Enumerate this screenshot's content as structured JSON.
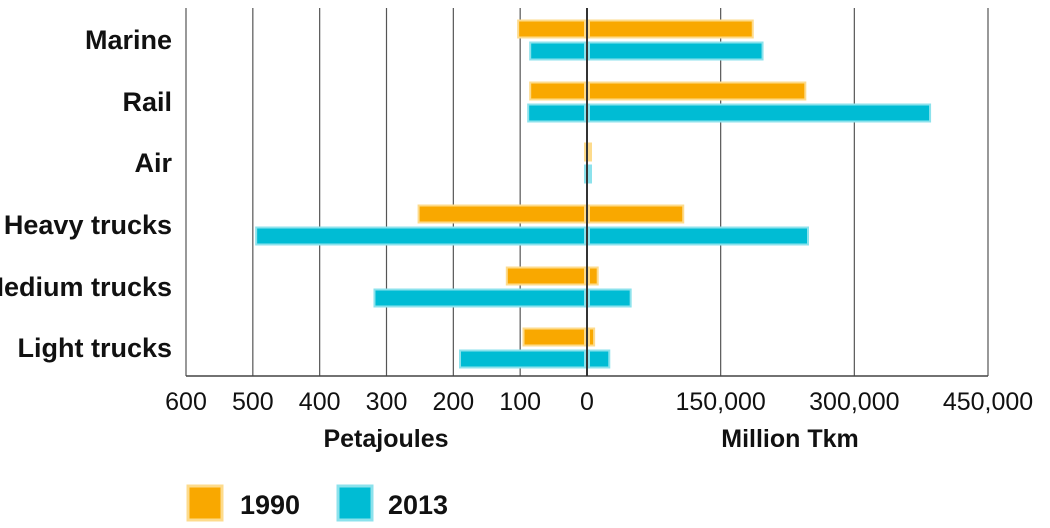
{
  "chart_data": {
    "type": "bar",
    "orientation": "horizontal",
    "layout": "back-to-back",
    "categories": [
      "Marine",
      "Rail",
      "Air",
      "Heavy trucks",
      "Medium trucks",
      "Light trucks"
    ],
    "panels": [
      {
        "xlabel": "Petajoules",
        "direction": "leftward",
        "xlim": [
          0,
          600
        ],
        "ticks": [
          "600",
          "500",
          "400",
          "300",
          "200",
          "100",
          "0"
        ],
        "series": [
          {
            "name": "1990",
            "values": [
              103,
              85,
              3,
              252,
              120,
              95
            ]
          },
          {
            "name": "2013",
            "values": [
              85,
              88,
              3,
              495,
              318,
              190
            ]
          }
        ]
      },
      {
        "xlabel": "Million Tkm",
        "direction": "rightward",
        "xlim": [
          0,
          450000
        ],
        "ticks": [
          "0",
          "150,000",
          "300,000",
          "450,000"
        ],
        "series": [
          {
            "name": "1990",
            "values": [
              186000,
              245000,
              4000,
              108000,
              12000,
              8000
            ]
          },
          {
            "name": "2013",
            "values": [
              197000,
              385000,
              4000,
              248000,
              49000,
              25000
            ]
          }
        ]
      }
    ],
    "legend": {
      "position": "bottom-left",
      "entries": [
        {
          "name": "1990",
          "color": "#F9A800",
          "edge": "#FDDB8C"
        },
        {
          "name": "2013",
          "color": "#00BCD4",
          "edge": "#8CE2EC"
        }
      ]
    },
    "grid": true
  }
}
